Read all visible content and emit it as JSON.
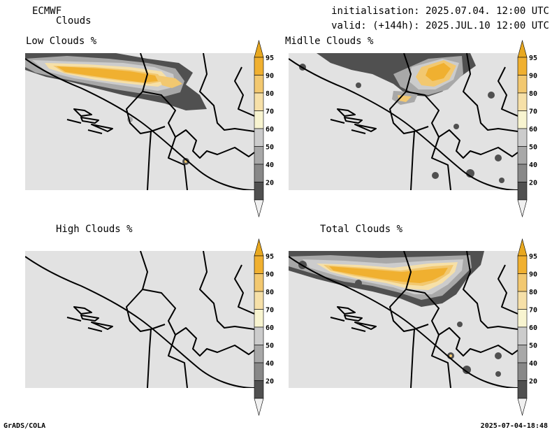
{
  "header": {
    "model": "ECMWF",
    "parameter": "Clouds",
    "initialisation": "initialisation: 2025.07.04. 12:00 UTC",
    "valid": "valid: (+144h): 2025.JUL.10 12:00 UTC"
  },
  "panels": [
    {
      "id": "low",
      "title": "Low Clouds %"
    },
    {
      "id": "middle",
      "title": "Midlle Clouds %"
    },
    {
      "id": "high",
      "title": "High Clouds %"
    },
    {
      "id": "total",
      "title": "Total Clouds %"
    }
  ],
  "colorbar": {
    "levels": [
      "95",
      "90",
      "80",
      "70",
      "60",
      "50",
      "40",
      "20"
    ],
    "colors": {
      "above95": "#e8a820",
      "c90_95": "#f0b030",
      "c80_90": "#f2c870",
      "c70_80": "#f6e0a8",
      "c60_70": "#f8f4d0",
      "c50_60": "#cccccc",
      "c40_50": "#a8a8a8",
      "c20_40": "#888888",
      "c_low": "#505050",
      "below20": "#f0f0f0"
    }
  },
  "map_colors": {
    "background": "#e2e2e2",
    "border": "#000000"
  },
  "footer": {
    "left": "GrADS/COLA",
    "right": "2025-07-04-18:48"
  }
}
